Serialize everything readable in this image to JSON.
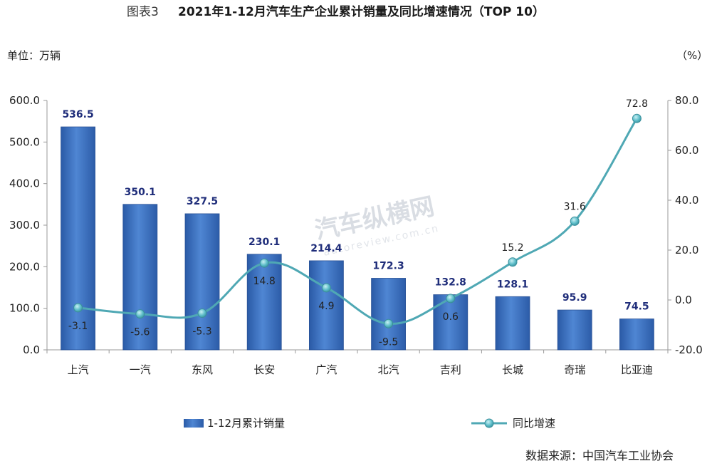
{
  "header": {
    "figure_no": "图表3",
    "title": "2021年1-12月汽车生产企业累计销量及同比增速情况（TOP 10）"
  },
  "units": {
    "left": "单位：万辆",
    "right": "（%）"
  },
  "watermark": {
    "main": "汽车纵横网",
    "sub": "autoreview.com.cn"
  },
  "source": "数据来源：中国汽车工业协会",
  "colors": {
    "bar": "#3a70c0",
    "bar_light": "#5b8fd6",
    "bar_dark": "#224f96",
    "line": "#4fa8b4",
    "marker": "#63c0cc"
  },
  "chart_data": {
    "type": "bar",
    "categories": [
      "上汽",
      "一汽",
      "东风",
      "长安",
      "广汽",
      "北汽",
      "吉利",
      "长城",
      "奇瑞",
      "比亚迪"
    ],
    "series": [
      {
        "name": "1-12月累计销量",
        "type": "bar",
        "axis": "left",
        "values": [
          536.5,
          350.1,
          327.5,
          230.1,
          214.4,
          172.3,
          132.8,
          128.1,
          95.9,
          74.5
        ],
        "labels": [
          "536.5",
          "350.1",
          "327.5",
          "230.1",
          "214.4",
          "172.3",
          "132.8",
          "128.1",
          "95.9",
          "74.5"
        ]
      },
      {
        "name": "同比增速",
        "type": "line",
        "axis": "right",
        "values": [
          -3.1,
          -5.6,
          -5.3,
          14.8,
          4.9,
          -9.5,
          0.6,
          15.2,
          31.6,
          72.8
        ],
        "labels": [
          "-3.1",
          "-5.6",
          "-5.3",
          "14.8",
          "4.9",
          "-9.5",
          "0.6",
          "15.2",
          "31.6",
          "72.8"
        ]
      }
    ],
    "y_left": {
      "min": 0,
      "max": 600,
      "step": 100,
      "ticks": [
        "0.0",
        "100.0",
        "200.0",
        "300.0",
        "400.0",
        "500.0",
        "600.0"
      ]
    },
    "y_right": {
      "min": -20,
      "max": 80,
      "step": 20,
      "ticks": [
        "-20.0",
        "0.0",
        "20.0",
        "40.0",
        "60.0",
        "80.0"
      ]
    },
    "grid": false,
    "legend": "bottom"
  }
}
